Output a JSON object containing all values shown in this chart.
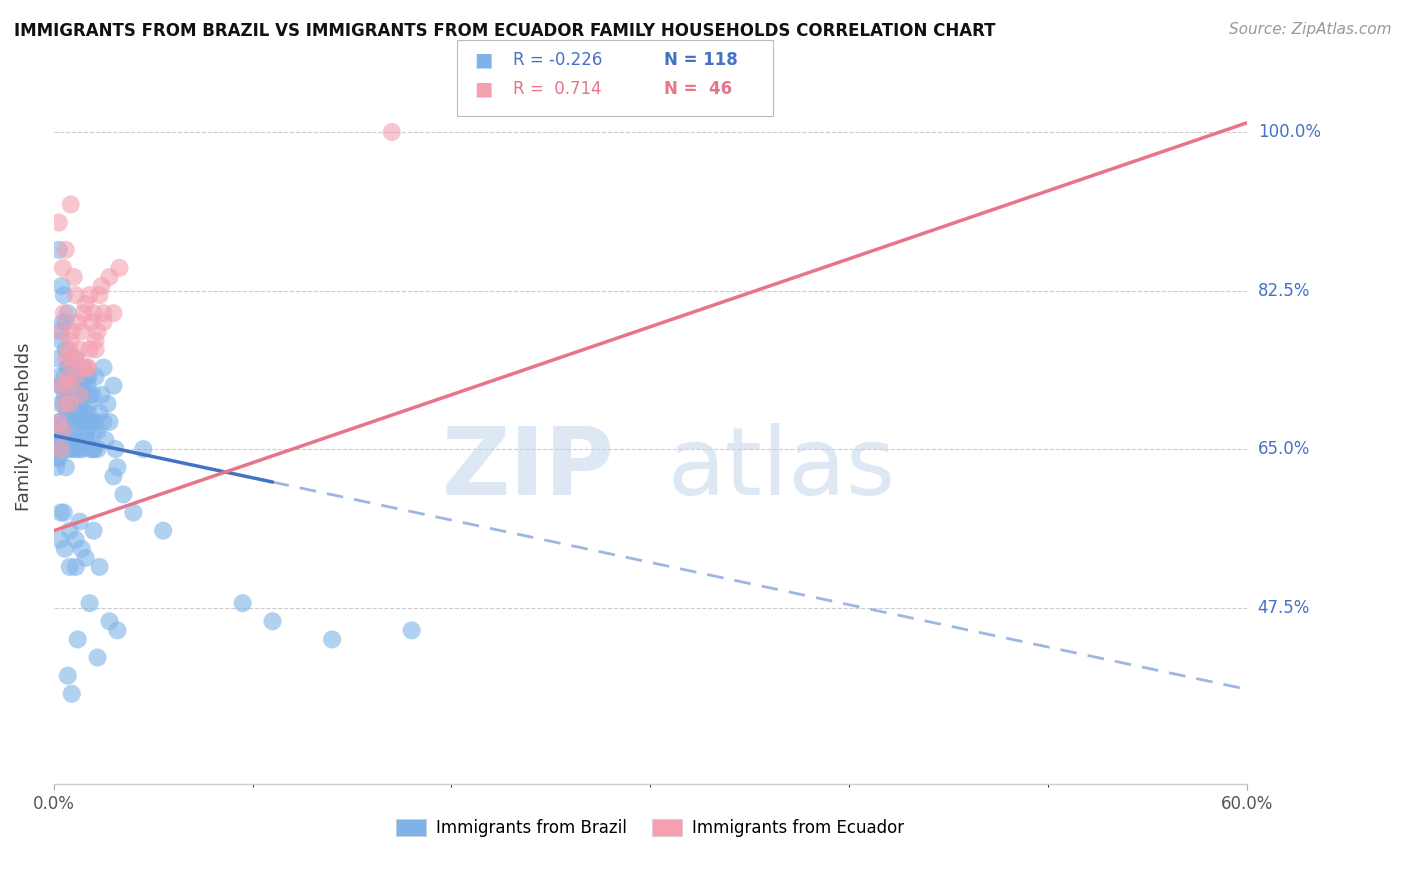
{
  "title": "IMMIGRANTS FROM BRAZIL VS IMMIGRANTS FROM ECUADOR FAMILY HOUSEHOLDS CORRELATION CHART",
  "source": "Source: ZipAtlas.com",
  "ylabel": "Family Households",
  "y_ticks": [
    47.5,
    65.0,
    82.5,
    100.0
  ],
  "y_tick_labels": [
    "47.5%",
    "65.0%",
    "82.5%",
    "100.0%"
  ],
  "x_min": 0.0,
  "x_max": 60.0,
  "y_min": 28.0,
  "y_max": 107.0,
  "brazil_color": "#7EB3E8",
  "ecuador_color": "#F4A0B0",
  "brazil_label": "Immigrants from Brazil",
  "ecuador_label": "Immigrants from Ecuador",
  "watermark_zip": "ZIP",
  "watermark_atlas": "atlas",
  "brazil_scatter": [
    [
      0.2,
      65.0
    ],
    [
      0.3,
      68.0
    ],
    [
      0.4,
      72.0
    ],
    [
      0.5,
      66.0
    ],
    [
      0.6,
      63.0
    ],
    [
      0.7,
      70.0
    ],
    [
      0.8,
      67.0
    ],
    [
      0.9,
      73.0
    ],
    [
      1.0,
      65.0
    ],
    [
      1.1,
      75.0
    ],
    [
      1.2,
      69.0
    ],
    [
      1.3,
      71.0
    ],
    [
      1.4,
      68.0
    ],
    [
      1.5,
      74.0
    ],
    [
      1.6,
      66.0
    ],
    [
      1.7,
      72.0
    ],
    [
      1.8,
      70.0
    ],
    [
      1.9,
      68.0
    ],
    [
      2.0,
      65.0
    ],
    [
      2.1,
      73.0
    ],
    [
      2.2,
      67.0
    ],
    [
      2.3,
      69.0
    ],
    [
      2.4,
      71.0
    ],
    [
      2.5,
      74.0
    ],
    [
      2.6,
      66.0
    ],
    [
      2.7,
      70.0
    ],
    [
      2.8,
      68.0
    ],
    [
      3.0,
      72.0
    ],
    [
      3.1,
      65.0
    ],
    [
      3.2,
      63.0
    ],
    [
      0.15,
      64.0
    ],
    [
      0.25,
      66.0
    ],
    [
      0.35,
      70.0
    ],
    [
      0.45,
      67.0
    ],
    [
      0.55,
      73.0
    ],
    [
      0.65,
      65.0
    ],
    [
      0.75,
      69.0
    ],
    [
      0.85,
      71.0
    ],
    [
      0.95,
      68.0
    ],
    [
      1.05,
      74.0
    ],
    [
      1.15,
      66.0
    ],
    [
      1.25,
      70.0
    ],
    [
      1.35,
      72.0
    ],
    [
      1.45,
      65.0
    ],
    [
      1.55,
      69.0
    ],
    [
      1.65,
      67.0
    ],
    [
      1.75,
      73.0
    ],
    [
      1.85,
      65.0
    ],
    [
      1.95,
      71.0
    ],
    [
      2.05,
      68.0
    ],
    [
      0.1,
      63.0
    ],
    [
      0.2,
      67.0
    ],
    [
      0.3,
      72.0
    ],
    [
      0.4,
      65.0
    ],
    [
      0.5,
      70.0
    ],
    [
      0.6,
      68.0
    ],
    [
      0.7,
      74.0
    ],
    [
      0.8,
      66.0
    ],
    [
      0.9,
      71.0
    ],
    [
      1.0,
      69.0
    ],
    [
      1.1,
      73.0
    ],
    [
      1.2,
      65.0
    ],
    [
      1.3,
      70.0
    ],
    [
      1.4,
      68.0
    ],
    [
      1.5,
      72.0
    ],
    [
      1.6,
      66.0
    ],
    [
      1.7,
      69.0
    ],
    [
      1.8,
      71.0
    ],
    [
      1.9,
      68.0
    ],
    [
      2.0,
      65.0
    ],
    [
      0.15,
      65.0
    ],
    [
      0.25,
      73.0
    ],
    [
      0.35,
      68.0
    ],
    [
      0.45,
      66.0
    ],
    [
      0.55,
      71.0
    ],
    [
      0.65,
      69.0
    ],
    [
      0.75,
      74.0
    ],
    [
      0.85,
      65.0
    ],
    [
      0.95,
      70.0
    ],
    [
      1.05,
      67.0
    ],
    [
      1.15,
      72.0
    ],
    [
      1.25,
      65.0
    ],
    [
      1.35,
      69.0
    ],
    [
      1.45,
      71.0
    ],
    [
      1.55,
      68.0
    ],
    [
      1.65,
      73.0
    ],
    [
      0.25,
      64.0
    ],
    [
      0.3,
      55.0
    ],
    [
      0.5,
      58.0
    ],
    [
      0.8,
      52.0
    ],
    [
      1.1,
      55.0
    ],
    [
      1.3,
      57.0
    ],
    [
      1.6,
      53.0
    ],
    [
      2.0,
      56.0
    ],
    [
      2.3,
      52.0
    ],
    [
      0.35,
      58.0
    ],
    [
      0.55,
      54.0
    ],
    [
      0.8,
      56.0
    ],
    [
      1.1,
      52.0
    ],
    [
      1.4,
      54.0
    ],
    [
      0.25,
      87.0
    ],
    [
      0.4,
      83.0
    ],
    [
      0.6,
      79.0
    ],
    [
      0.3,
      78.0
    ],
    [
      0.5,
      82.0
    ],
    [
      0.6,
      76.0
    ],
    [
      0.7,
      80.0
    ],
    [
      0.2,
      75.0
    ],
    [
      0.35,
      77.0
    ],
    [
      0.45,
      79.0
    ],
    [
      2.0,
      67.0
    ],
    [
      2.2,
      65.0
    ],
    [
      2.5,
      68.0
    ],
    [
      3.0,
      62.0
    ],
    [
      3.5,
      60.0
    ],
    [
      4.5,
      65.0
    ],
    [
      4.0,
      58.0
    ],
    [
      5.5,
      56.0
    ],
    [
      0.7,
      40.0
    ],
    [
      1.2,
      44.0
    ],
    [
      1.8,
      48.0
    ],
    [
      2.2,
      42.0
    ],
    [
      3.2,
      45.0
    ],
    [
      2.8,
      46.0
    ],
    [
      0.9,
      38.0
    ],
    [
      9.5,
      48.0
    ],
    [
      11.0,
      46.0
    ],
    [
      14.0,
      44.0
    ],
    [
      18.0,
      45.0
    ]
  ],
  "ecuador_scatter": [
    [
      0.25,
      68.0
    ],
    [
      0.4,
      72.0
    ],
    [
      0.6,
      75.0
    ],
    [
      0.8,
      70.0
    ],
    [
      0.9,
      78.0
    ],
    [
      1.1,
      73.0
    ],
    [
      1.3,
      76.0
    ],
    [
      1.5,
      80.0
    ],
    [
      1.7,
      74.0
    ],
    [
      1.9,
      79.0
    ],
    [
      2.1,
      77.0
    ],
    [
      2.3,
      82.0
    ],
    [
      2.5,
      79.0
    ],
    [
      2.8,
      84.0
    ],
    [
      3.0,
      80.0
    ],
    [
      3.3,
      85.0
    ],
    [
      0.35,
      65.0
    ],
    [
      0.55,
      70.0
    ],
    [
      0.7,
      73.0
    ],
    [
      0.85,
      77.0
    ],
    [
      1.05,
      75.0
    ],
    [
      1.2,
      79.0
    ],
    [
      1.4,
      74.0
    ],
    [
      1.6,
      81.0
    ],
    [
      1.8,
      76.0
    ],
    [
      2.0,
      80.0
    ],
    [
      2.2,
      78.0
    ],
    [
      2.4,
      83.0
    ],
    [
      0.25,
      90.0
    ],
    [
      0.45,
      85.0
    ],
    [
      0.6,
      87.0
    ],
    [
      0.85,
      92.0
    ],
    [
      1.1,
      82.0
    ],
    [
      0.35,
      78.0
    ],
    [
      0.5,
      80.0
    ],
    [
      0.75,
      76.0
    ],
    [
      1.0,
      84.0
    ],
    [
      1.4,
      78.0
    ],
    [
      1.8,
      82.0
    ],
    [
      0.45,
      67.0
    ],
    [
      0.7,
      72.0
    ],
    [
      0.9,
      75.0
    ],
    [
      1.3,
      71.0
    ],
    [
      1.7,
      74.0
    ],
    [
      2.1,
      76.0
    ],
    [
      2.5,
      80.0
    ],
    [
      17.0,
      100.0
    ]
  ],
  "brazil_line": {
    "x0": 0.0,
    "y0": 66.5,
    "x1": 60.0,
    "y1": 38.5
  },
  "brazil_solid_end": 11.0,
  "ecuador_line": {
    "x0": 0.0,
    "y0": 56.0,
    "x1": 60.0,
    "y1": 101.0
  }
}
